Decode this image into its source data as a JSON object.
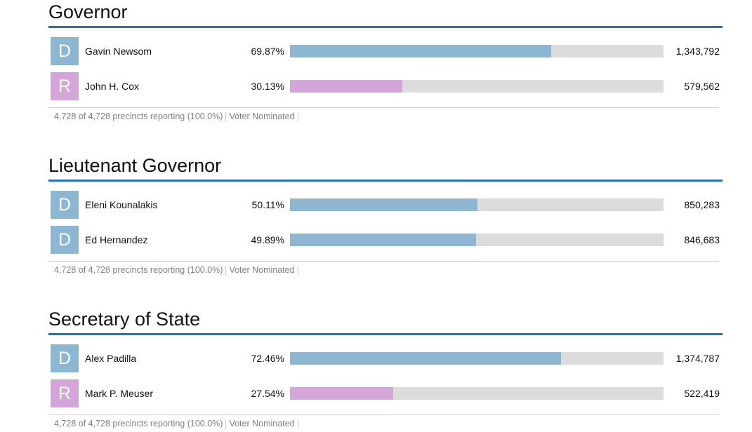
{
  "colors": {
    "democrat": "#8db6d3",
    "republican": "#d3a5d8",
    "bar_track": "#dcdcdc",
    "title_rule": "#1f74b4"
  },
  "races": [
    {
      "title": "Governor",
      "candidates": [
        {
          "party": "D",
          "name": "Gavin Newsom",
          "pct_label": "69.87%",
          "pct": 69.87,
          "votes": "1,343,792"
        },
        {
          "party": "R",
          "name": "John H. Cox",
          "pct_label": "30.13%",
          "pct": 30.13,
          "votes": "579,562"
        }
      ],
      "precincts": "4,728 of 4,728 precincts reporting (100.0%)",
      "type": "Voter Nominated"
    },
    {
      "title": "Lieutenant Governor",
      "candidates": [
        {
          "party": "D",
          "name": "Eleni Kounalakis",
          "pct_label": "50.11%",
          "pct": 50.11,
          "votes": "850,283"
        },
        {
          "party": "D",
          "name": "Ed Hernandez",
          "pct_label": "49.89%",
          "pct": 49.89,
          "votes": "846,683"
        }
      ],
      "precincts": "4,728 of 4,728 precincts reporting (100.0%)",
      "type": "Voter Nominated"
    },
    {
      "title": "Secretary of State",
      "candidates": [
        {
          "party": "D",
          "name": "Alex Padilla",
          "pct_label": "72.46%",
          "pct": 72.46,
          "votes": "1,374,787"
        },
        {
          "party": "R",
          "name": "Mark P. Meuser",
          "pct_label": "27.54%",
          "pct": 27.54,
          "votes": "522,419"
        }
      ],
      "precincts": "4,728 of 4,728 precincts reporting (100.0%)",
      "type": "Voter Nominated"
    }
  ]
}
